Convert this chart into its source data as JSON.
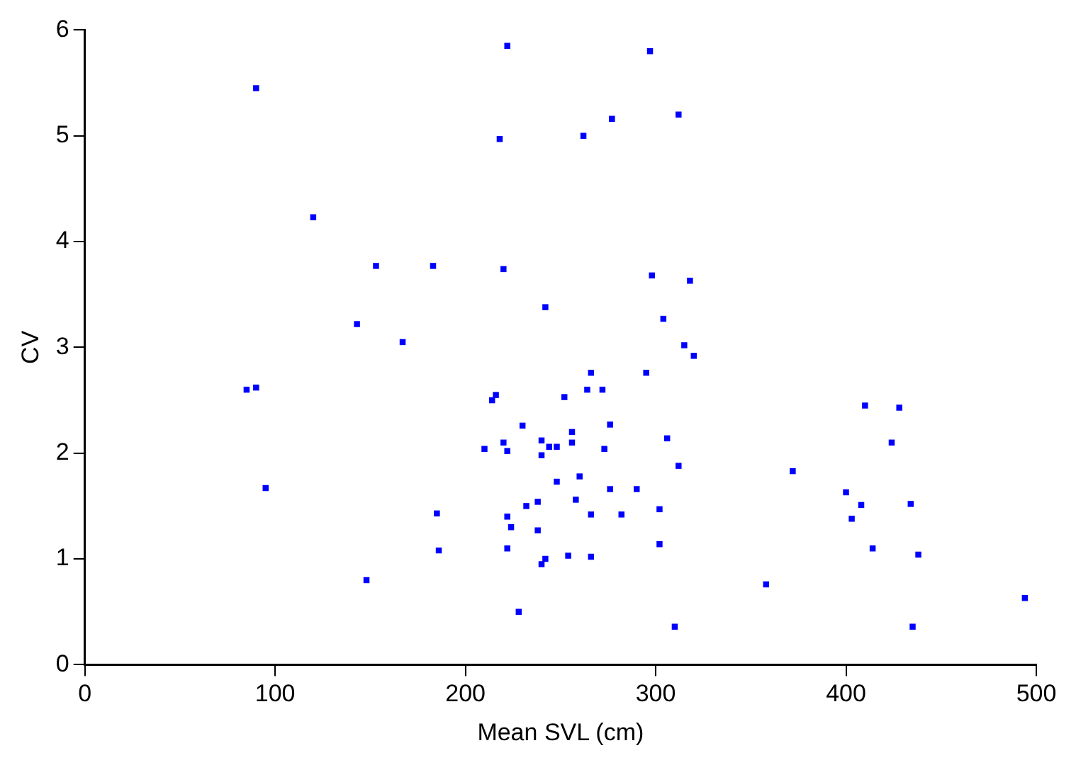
{
  "chart_data": {
    "type": "scatter",
    "xlabel": "Mean SVL (cm)",
    "ylabel": "CV",
    "xlim": [
      0,
      500
    ],
    "xticks": [
      0,
      100,
      200,
      300,
      400,
      500
    ],
    "ylim": [
      0,
      6
    ],
    "yticks": [
      0,
      1,
      2,
      3,
      4,
      5,
      6
    ],
    "grid": false,
    "legend": false,
    "marker": "square",
    "series": [
      {
        "color": "#0000ff",
        "x": [
          90,
          120,
          143,
          153,
          183,
          167,
          85,
          90,
          95,
          148,
          185,
          186,
          222,
          218,
          220,
          242,
          262,
          277,
          297,
          312,
          298,
          318,
          304,
          315,
          320,
          295,
          266,
          264,
          272,
          252,
          216,
          214,
          210,
          220,
          222,
          230,
          240,
          244,
          248,
          240,
          256,
          256,
          273,
          276,
          306,
          312,
          260,
          248,
          238,
          232,
          266,
          258,
          276,
          290,
          282,
          302,
          222,
          224,
          238,
          222,
          240,
          242,
          254,
          266,
          302,
          228,
          310,
          358,
          372,
          400,
          403,
          408,
          410,
          428,
          424,
          434,
          414,
          438,
          435,
          494
        ],
        "values": [
          5.45,
          4.23,
          3.22,
          3.77,
          3.77,
          3.05,
          2.6,
          2.62,
          1.67,
          0.8,
          1.43,
          1.08,
          5.85,
          4.97,
          3.74,
          3.38,
          5.0,
          5.16,
          5.8,
          5.2,
          3.68,
          3.63,
          3.27,
          3.02,
          2.92,
          2.76,
          2.76,
          2.6,
          2.6,
          2.53,
          2.55,
          2.5,
          2.04,
          2.1,
          2.02,
          2.26,
          2.12,
          2.06,
          2.06,
          1.98,
          2.2,
          2.1,
          2.04,
          2.27,
          2.14,
          1.88,
          1.78,
          1.73,
          1.54,
          1.5,
          1.42,
          1.56,
          1.66,
          1.66,
          1.42,
          1.47,
          1.4,
          1.3,
          1.27,
          1.1,
          0.95,
          1.0,
          1.03,
          1.02,
          1.14,
          0.5,
          0.36,
          0.76,
          1.83,
          1.63,
          1.38,
          1.51,
          2.45,
          2.43,
          2.1,
          1.52,
          1.1,
          1.04,
          0.36,
          0.63
        ]
      }
    ]
  }
}
